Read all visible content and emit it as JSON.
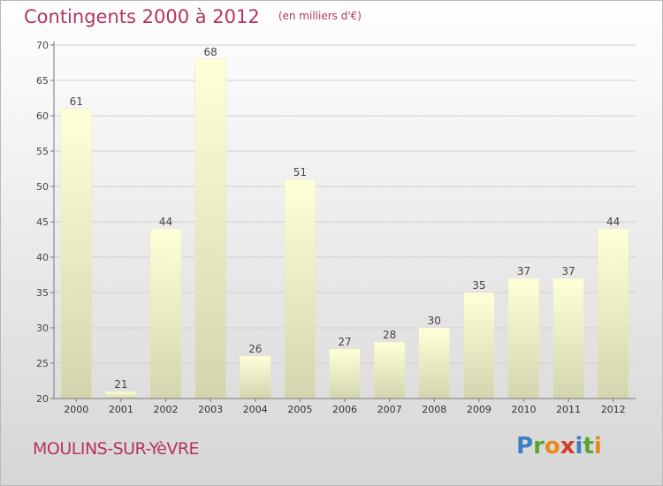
{
  "header": {
    "title": "Contingents 2000 à 2012",
    "unit": "(en milliers d'€)"
  },
  "footer": {
    "commune": "MOULINS-SUR-YèVRE",
    "logo_text": "Proxiti"
  },
  "colors": {
    "accent": "#b5335f",
    "bar_top": "#ffffd8",
    "bar_bottom": "#d6d6b0",
    "grid": "#d0d0d0"
  },
  "chart_data": {
    "type": "bar",
    "title": "Contingents 2000 à 2012",
    "xlabel": "",
    "ylabel": "",
    "categories": [
      "2000",
      "2001",
      "2002",
      "2003",
      "2004",
      "2005",
      "2006",
      "2007",
      "2008",
      "2009",
      "2010",
      "2011",
      "2012"
    ],
    "values": [
      61,
      21,
      44,
      68,
      26,
      51,
      27,
      28,
      30,
      35,
      37,
      37,
      44
    ],
    "ylim": [
      20,
      70
    ],
    "yticks": [
      20,
      25,
      30,
      35,
      40,
      45,
      50,
      55,
      60,
      65,
      70
    ],
    "grid": true,
    "data_labels": true
  }
}
